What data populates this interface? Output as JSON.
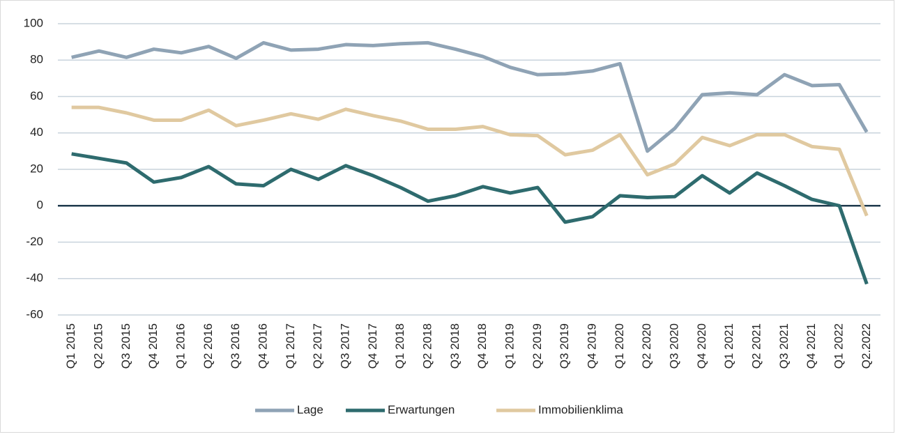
{
  "chart_data": {
    "type": "line",
    "categories": [
      "Q1 2015",
      "Q2 2015",
      "Q3 2015",
      "Q4 2015",
      "Q1 2016",
      "Q2 2016",
      "Q3 2016",
      "Q4 2016",
      "Q1 2017",
      "Q2 2017",
      "Q3 2017",
      "Q4 2017",
      "Q1 2018",
      "Q2 2018",
      "Q3 2018",
      "Q4 2018",
      "Q1 2019",
      "Q2 2019",
      "Q3 2019",
      "Q4 2019",
      "Q1 2020",
      "Q2 2020",
      "Q3 2020",
      "Q4 2020",
      "Q1 2021",
      "Q2 2021",
      "Q3 2021",
      "Q4 2021",
      "Q1 2022",
      "Q2.2022"
    ],
    "series": [
      {
        "name": "Lage",
        "color": "#8fa3b5",
        "values": [
          81.5,
          85,
          81.5,
          86,
          84,
          87.5,
          81,
          89.5,
          85.5,
          86,
          88.5,
          88,
          89,
          89.5,
          86,
          82,
          76,
          72,
          72.5,
          74,
          78,
          30,
          42.5,
          61,
          62,
          61,
          72,
          66,
          66.5,
          40.5
        ]
      },
      {
        "name": "Erwartungen",
        "color": "#2e6b6e",
        "values": [
          28.5,
          26,
          23.5,
          13,
          15.5,
          21.5,
          12,
          11,
          20,
          14.5,
          22,
          16.5,
          10,
          2.5,
          5.5,
          10.5,
          7,
          10,
          -9,
          -6,
          5.5,
          4.5,
          5,
          16.5,
          7,
          18,
          11,
          3.5,
          0,
          -43
        ]
      },
      {
        "name": "Immobilienklima",
        "color": "#e0c9a0",
        "values": [
          54,
          54,
          51,
          47,
          47,
          52.5,
          44,
          47,
          50.5,
          47.5,
          53,
          49.5,
          46.5,
          42,
          42,
          43.5,
          39,
          38.5,
          28,
          30.5,
          39,
          17,
          23,
          37.5,
          33,
          39,
          39,
          32.5,
          31,
          -5.5
        ]
      }
    ],
    "ylim": [
      -60,
      100
    ],
    "yticks": [
      -60,
      -40,
      -20,
      0,
      20,
      40,
      60,
      80,
      100
    ],
    "grid": true,
    "legend": "bottom"
  }
}
